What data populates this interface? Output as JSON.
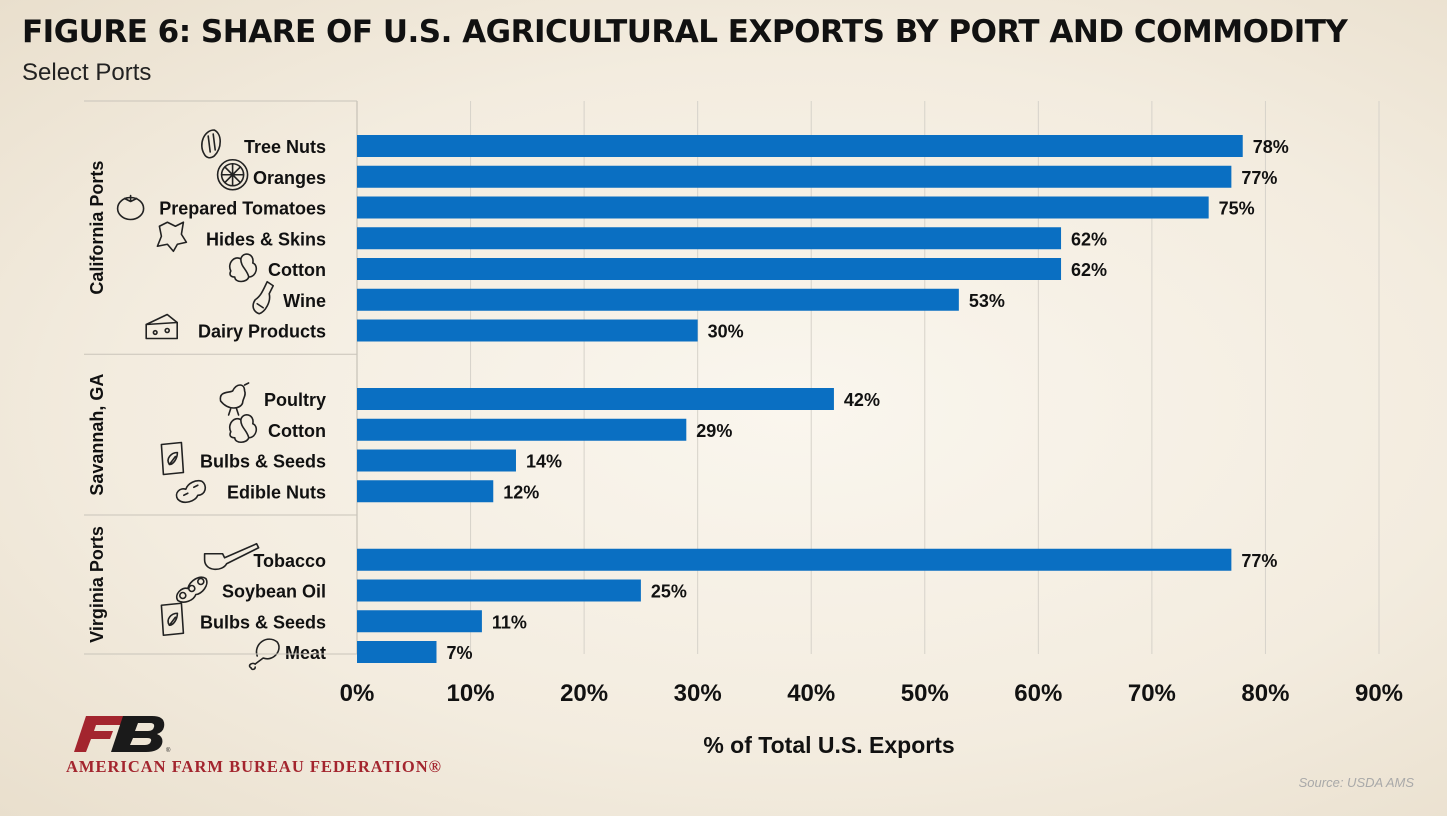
{
  "title": "FIGURE 6: SHARE OF U.S. AGRICULTURAL EXPORTS BY PORT AND COMMODITY",
  "subtitle": "Select Ports",
  "source": "Source: USDA AMS",
  "logo_text": "AMERICAN FARM BUREAU FEDERATION®",
  "colors": {
    "bar": "#0a6fc2",
    "grid": "#d6d2ca",
    "logo_red": "#a3252e",
    "logo_dark": "#1a1a1a"
  },
  "chart_data": {
    "type": "bar",
    "orientation": "horizontal",
    "title": "FIGURE 6: SHARE OF U.S. AGRICULTURAL EXPORTS BY PORT AND COMMODITY",
    "subtitle": "Select Ports",
    "xlabel": "% of Total U.S. Exports",
    "ylabel": "",
    "xlim": [
      0,
      90
    ],
    "xticks": [
      0,
      10,
      20,
      30,
      40,
      50,
      60,
      70,
      80,
      90
    ],
    "xtick_labels": [
      "0%",
      "10%",
      "20%",
      "30%",
      "40%",
      "50%",
      "60%",
      "70%",
      "80%",
      "90%"
    ],
    "grid": true,
    "value_suffix": "%",
    "groups": [
      {
        "name": "California Ports",
        "items": [
          {
            "label": "Tree Nuts",
            "value": 78,
            "icon": "tree-nut-icon"
          },
          {
            "label": "Oranges",
            "value": 77,
            "icon": "orange-icon"
          },
          {
            "label": "Prepared Tomatoes",
            "value": 75,
            "icon": "tomato-icon"
          },
          {
            "label": "Hides & Skins",
            "value": 62,
            "icon": "hide-icon"
          },
          {
            "label": "Cotton",
            "value": 62,
            "icon": "cotton-icon"
          },
          {
            "label": "Wine",
            "value": 53,
            "icon": "wine-bottle-icon"
          },
          {
            "label": "Dairy Products",
            "value": 30,
            "icon": "cheese-icon"
          }
        ]
      },
      {
        "name": "Savannah, GA",
        "items": [
          {
            "label": "Poultry",
            "value": 42,
            "icon": "chicken-icon"
          },
          {
            "label": "Cotton",
            "value": 29,
            "icon": "cotton-icon"
          },
          {
            "label": "Bulbs & Seeds",
            "value": 14,
            "icon": "seed-packet-icon"
          },
          {
            "label": "Edible Nuts",
            "value": 12,
            "icon": "peanut-icon"
          }
        ]
      },
      {
        "name": "Virginia Ports",
        "items": [
          {
            "label": "Tobacco",
            "value": 77,
            "icon": "pipe-icon"
          },
          {
            "label": "Soybean Oil",
            "value": 25,
            "icon": "soybean-icon"
          },
          {
            "label": "Bulbs & Seeds",
            "value": 11,
            "icon": "seed-packet-icon"
          },
          {
            "label": "Meat",
            "value": 7,
            "icon": "drumstick-icon"
          }
        ]
      }
    ]
  }
}
